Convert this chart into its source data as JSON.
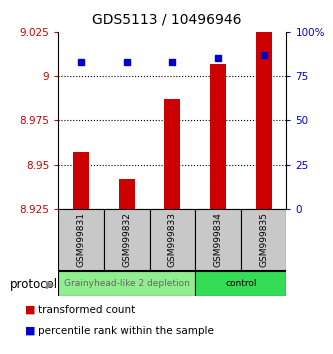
{
  "title": "GDS5113 / 10496946",
  "samples": [
    "GSM999831",
    "GSM999832",
    "GSM999833",
    "GSM999834",
    "GSM999835"
  ],
  "red_values": [
    8.957,
    8.942,
    8.987,
    9.007,
    9.025
  ],
  "blue_values": [
    83,
    83,
    83,
    85,
    87
  ],
  "ylim_left": [
    8.925,
    9.025
  ],
  "ylim_right": [
    0,
    100
  ],
  "yticks_left": [
    8.925,
    8.95,
    8.975,
    9.0,
    9.025
  ],
  "ytick_labels_left": [
    "8.925",
    "8.95",
    "8.975",
    "9",
    "9.025"
  ],
  "yticks_right": [
    0,
    25,
    50,
    75,
    100
  ],
  "ytick_labels_right": [
    "0",
    "25",
    "50",
    "75",
    "100%"
  ],
  "groups": [
    {
      "label": "Grainyhead-like 2 depletion",
      "start": 0,
      "end": 3,
      "color": "#90EE90",
      "text_color": "#666666"
    },
    {
      "label": "control",
      "start": 3,
      "end": 5,
      "color": "#33DD55",
      "text_color": "#000000"
    }
  ],
  "protocol_label": "protocol",
  "bar_color": "#CC0000",
  "dot_color": "#0000CC",
  "bar_bottom": 8.925,
  "legend_red": "transformed count",
  "legend_blue": "percentile rank within the sample",
  "sample_box_color": "#C8C8C8",
  "sample_text_color": "#000000",
  "title_fontsize": 10,
  "tick_fontsize": 7.5,
  "bar_width": 0.35
}
